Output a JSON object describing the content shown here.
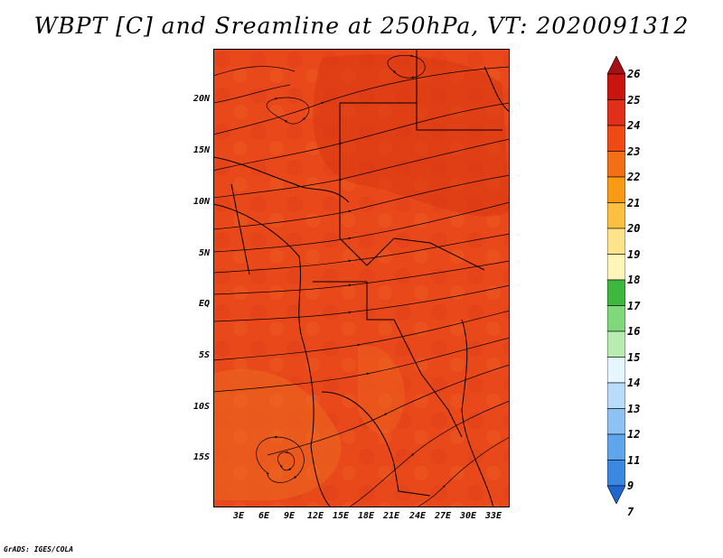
{
  "title": "WBPT [C] and Sreamline at 250hPa, VT: 2020091312",
  "credit": "GrADS: IGES/COLA",
  "map": {
    "lat_ticks": [
      "20N",
      "15N",
      "10N",
      "5N",
      "EQ",
      "5S",
      "10S",
      "15S"
    ],
    "lon_ticks": [
      "3E",
      "6E",
      "9E",
      "12E",
      "15E",
      "18E",
      "21E",
      "24E",
      "27E",
      "30E",
      "33E"
    ],
    "field_colors": {
      "base": "#e8481a",
      "warm": "#d8340f",
      "cool": "#f07022"
    }
  },
  "colorbar": {
    "levels": [
      "26",
      "25",
      "24",
      "23",
      "22",
      "21",
      "20",
      "19",
      "18",
      "17",
      "16",
      "15",
      "14",
      "13",
      "12",
      "11",
      "9",
      "7"
    ],
    "colors": [
      "#a50f15",
      "#c8160e",
      "#e0301a",
      "#ef4a14",
      "#f36f16",
      "#f79a14",
      "#fbc040",
      "#fde48a",
      "#fff5b8",
      "#3cb83c",
      "#7fd87a",
      "#b8ecb0",
      "#e6f6ff",
      "#b8dcfa",
      "#8cc2f4",
      "#5ea6ec",
      "#3a88e0",
      "#1f66d0"
    ]
  }
}
